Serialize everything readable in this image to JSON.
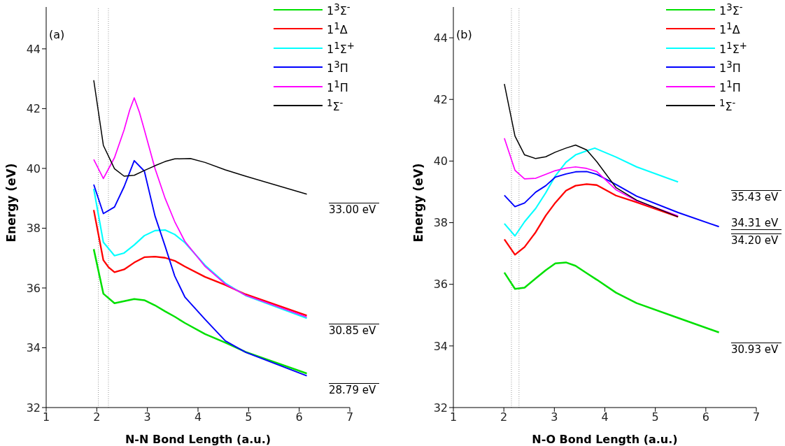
{
  "chart_data": [
    {
      "type": "line",
      "title": "(a)",
      "xlabel": "N-N Bond Length (a.u.)",
      "ylabel": "Energy (eV)",
      "xlim": [
        1,
        7
      ],
      "xticks": [
        1,
        2,
        3,
        4,
        5,
        6,
        7
      ],
      "ylim": [
        32,
        45.4
      ],
      "yticks": [
        32,
        34,
        36,
        38,
        40,
        42,
        44
      ],
      "legend": "top right",
      "line_style": "solid",
      "marker": "none",
      "series": [
        {
          "name": "1$^{3}$Σ$^{-}$",
          "color": "#00e000",
          "x": [
            1.94,
            2.13,
            2.35,
            2.74,
            2.94,
            3.15,
            3.35,
            3.54,
            3.74,
            4.14,
            4.54,
            4.94,
            6.15
          ],
          "values": [
            37.3,
            35.81,
            35.49,
            35.63,
            35.59,
            35.42,
            35.22,
            35.04,
            34.83,
            34.46,
            34.17,
            33.86,
            33.14
          ]
        },
        {
          "name": "1$^{1}$Δ",
          "color": "#ff0000",
          "x": [
            1.94,
            2.13,
            2.23,
            2.35,
            2.54,
            2.74,
            2.94,
            3.15,
            3.35,
            3.54,
            3.74,
            4.14,
            4.54,
            4.94,
            6.15
          ],
          "values": [
            38.61,
            36.93,
            36.7,
            36.53,
            36.62,
            36.85,
            37.03,
            37.05,
            37.01,
            36.91,
            36.72,
            36.37,
            36.1,
            35.79,
            35.08
          ]
        },
        {
          "name": "1$^{1}$Σ$^{+}$",
          "color": "#00ffff",
          "x": [
            1.94,
            2.13,
            2.35,
            2.54,
            2.74,
            2.94,
            3.15,
            3.35,
            3.54,
            3.74,
            4.14,
            4.54,
            4.94,
            6.15
          ],
          "values": [
            39.32,
            37.53,
            37.08,
            37.17,
            37.44,
            37.75,
            37.92,
            37.94,
            37.79,
            37.52,
            36.76,
            36.16,
            35.75,
            34.99
          ]
        },
        {
          "name": "1$^{3}$Π",
          "color": "#0000ff",
          "x": [
            1.94,
            2.13,
            2.35,
            2.54,
            2.74,
            2.94,
            3.15,
            3.35,
            3.54,
            3.74,
            4.14,
            4.54,
            4.94,
            6.15
          ],
          "values": [
            39.46,
            38.49,
            38.71,
            39.39,
            40.26,
            39.91,
            38.41,
            37.4,
            36.4,
            35.7,
            34.95,
            34.23,
            33.85,
            33.06
          ]
        },
        {
          "name": "1$^{1}$Π",
          "color": "#ff00ff",
          "x": [
            1.94,
            2.13,
            2.35,
            2.54,
            2.65,
            2.74,
            2.84,
            2.94,
            3.15,
            3.35,
            3.54,
            3.74,
            4.14,
            4.54,
            4.94,
            6.15
          ],
          "values": [
            40.3,
            39.66,
            40.36,
            41.29,
            41.95,
            42.36,
            41.89,
            41.29,
            40.0,
            39.0,
            38.22,
            37.56,
            36.72,
            36.13,
            35.76,
            35.03
          ]
        },
        {
          "name": "$^{1}$Σ$^{-}$",
          "color": "#000000",
          "x": [
            1.94,
            2.13,
            2.35,
            2.54,
            2.74,
            2.94,
            3.15,
            3.35,
            3.54,
            3.85,
            4.14,
            4.54,
            4.94,
            6.15
          ],
          "values": [
            42.95,
            40.77,
            39.99,
            39.74,
            39.77,
            39.93,
            40.09,
            40.23,
            40.32,
            40.33,
            40.2,
            39.95,
            39.74,
            39.14
          ]
        }
      ],
      "ref_lines": [
        {
          "axis": "x",
          "value": 2.03,
          "color": "#999999",
          "line_style": "dotted"
        },
        {
          "axis": "x",
          "value": 2.23,
          "color": "#999999",
          "line_style": "dotted"
        }
      ],
      "annotations": [
        "33.00 eV",
        "30.85 eV",
        "28.79 eV"
      ]
    },
    {
      "type": "line",
      "title": "(b)",
      "xlabel": "N-O Bond Length (a.u.)",
      "ylabel": "Energy (eV)",
      "xlim": [
        1,
        7
      ],
      "xticks": [
        1,
        2,
        3,
        4,
        5,
        6,
        7
      ],
      "ylim": [
        32,
        45
      ],
      "yticks": [
        32,
        34,
        36,
        38,
        40,
        42,
        44
      ],
      "legend": "top right",
      "line_style": "solid",
      "marker": "none",
      "series": [
        {
          "name": "1$^{3}$Σ$^{-}$",
          "color": "#00e000",
          "x": [
            2.01,
            2.22,
            2.41,
            2.63,
            2.83,
            3.02,
            3.23,
            3.42,
            3.64,
            3.84,
            4.22,
            4.63,
            5.45,
            6.26
          ],
          "values": [
            36.38,
            35.85,
            35.89,
            36.19,
            36.46,
            36.68,
            36.71,
            36.6,
            36.36,
            36.15,
            35.73,
            35.39,
            34.91,
            34.44
          ]
        },
        {
          "name": "1$^{1}$Δ",
          "color": "#ff0000",
          "x": [
            2.01,
            2.22,
            2.41,
            2.63,
            2.83,
            3.02,
            3.23,
            3.42,
            3.64,
            3.84,
            4.22,
            4.63,
            5.45
          ],
          "values": [
            37.46,
            36.96,
            37.21,
            37.69,
            38.23,
            38.65,
            39.04,
            39.2,
            39.25,
            39.22,
            38.88,
            38.66,
            38.19
          ]
        },
        {
          "name": "1$^{1}$Σ$^{+}$",
          "color": "#00ffff",
          "x": [
            2.01,
            2.22,
            2.41,
            2.63,
            2.83,
            3.02,
            3.23,
            3.42,
            3.64,
            3.8,
            4.22,
            4.63,
            5.45
          ],
          "values": [
            37.97,
            37.57,
            38.03,
            38.46,
            38.97,
            39.52,
            39.96,
            40.2,
            40.33,
            40.42,
            40.13,
            39.81,
            39.32
          ]
        },
        {
          "name": "1$^{3}$Π",
          "color": "#0000ff",
          "x": [
            2.01,
            2.22,
            2.41,
            2.63,
            2.83,
            3.02,
            3.23,
            3.42,
            3.64,
            3.84,
            4.22,
            4.63,
            5.45,
            6.26
          ],
          "values": [
            38.89,
            38.52,
            38.64,
            38.99,
            39.2,
            39.48,
            39.58,
            39.65,
            39.66,
            39.57,
            39.24,
            38.86,
            38.33,
            37.87
          ]
        },
        {
          "name": "1$^{1}$Π",
          "color": "#ff00ff",
          "x": [
            2.01,
            2.22,
            2.41,
            2.63,
            3.02,
            3.23,
            3.42,
            3.64,
            3.84,
            4.22,
            4.63,
            5.45
          ],
          "values": [
            40.74,
            39.7,
            39.42,
            39.44,
            39.69,
            39.77,
            39.81,
            39.76,
            39.66,
            39.07,
            38.71,
            38.22
          ]
        },
        {
          "name": "$^{1}$Σ$^{-}$",
          "color": "#000000",
          "x": [
            2.01,
            2.22,
            2.41,
            2.63,
            2.83,
            3.02,
            3.23,
            3.42,
            3.64,
            3.84,
            4.22,
            4.63,
            5.45
          ],
          "values": [
            42.5,
            40.81,
            40.2,
            40.08,
            40.14,
            40.29,
            40.42,
            40.52,
            40.36,
            39.98,
            39.14,
            38.73,
            38.19
          ]
        }
      ],
      "ref_lines": [
        {
          "axis": "x",
          "value": 2.15,
          "color": "#999999",
          "line_style": "dotted"
        },
        {
          "axis": "x",
          "value": 2.3,
          "color": "#999999",
          "line_style": "dotted"
        }
      ],
      "annotations": [
        "35.43 eV",
        "34.31 eV",
        "34.20 eV",
        "30.93 eV"
      ]
    }
  ]
}
